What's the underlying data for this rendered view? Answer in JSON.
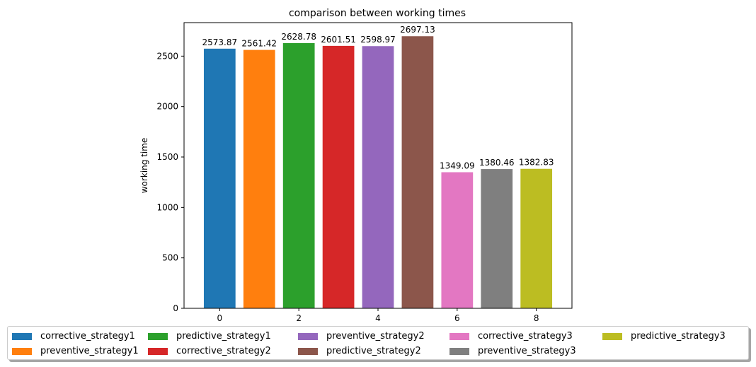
{
  "chart_data": {
    "type": "bar",
    "title": "comparison between working times",
    "xlabel": "",
    "ylabel": "working time",
    "xlim": [
      -0.9,
      8.9
    ],
    "ylim": [
      0,
      2832
    ],
    "x_ticks": [
      0,
      2,
      4,
      6,
      8
    ],
    "y_ticks": [
      0,
      500,
      1000,
      1500,
      2000,
      2500
    ],
    "legend_position": "bottom",
    "grid": false,
    "series": [
      {
        "name": "corrective_strategy1",
        "x": 0,
        "value": 2573.87,
        "label": "2573.87",
        "color": "#1f77b4"
      },
      {
        "name": "preventive_strategy1",
        "x": 1,
        "value": 2561.42,
        "label": "2561.42",
        "color": "#ff7f0e"
      },
      {
        "name": "predictive_strategy1",
        "x": 2,
        "value": 2628.78,
        "label": "2628.78",
        "color": "#2ca02c"
      },
      {
        "name": "corrective_strategy2",
        "x": 3,
        "value": 2601.51,
        "label": "2601.51",
        "color": "#d62728"
      },
      {
        "name": "preventive_strategy2",
        "x": 4,
        "value": 2598.97,
        "label": "2598.97",
        "color": "#9467bd"
      },
      {
        "name": "predictive_strategy2",
        "x": 5,
        "value": 2697.13,
        "label": "2697.13",
        "color": "#8c564b"
      },
      {
        "name": "corrective_strategy3",
        "x": 6,
        "value": 1349.09,
        "label": "1349.09",
        "color": "#e377c2"
      },
      {
        "name": "preventive_strategy3",
        "x": 7,
        "value": 1380.46,
        "label": "1380.46",
        "color": "#7f7f7f"
      },
      {
        "name": "predictive_strategy3",
        "x": 8,
        "value": 1382.83,
        "label": "1382.83",
        "color": "#bcbd22"
      }
    ]
  }
}
